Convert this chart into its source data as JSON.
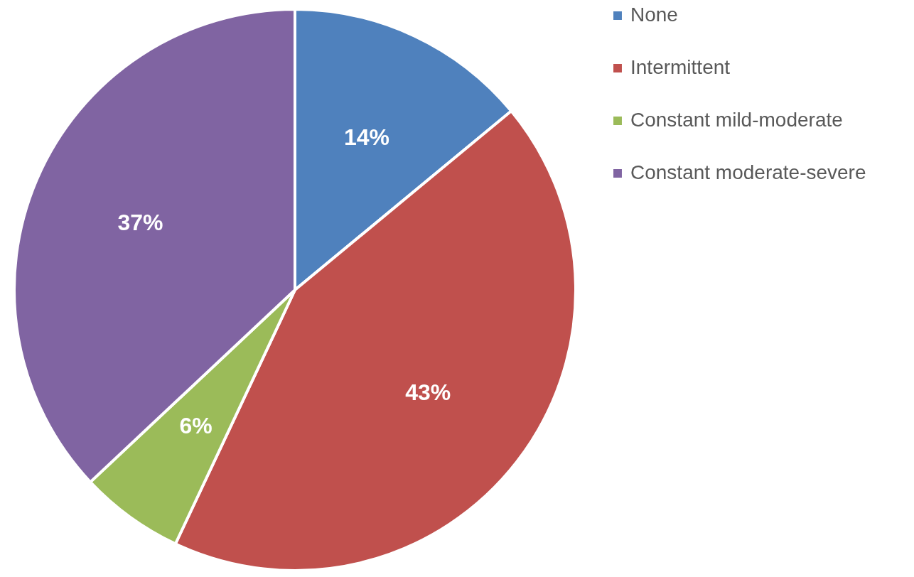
{
  "chart_data": {
    "type": "pie",
    "categories": [
      "None",
      "Intermittent",
      "Constant mild-moderate",
      "Constant moderate-severe"
    ],
    "values": [
      14,
      43,
      6,
      37
    ],
    "colors": [
      "#4f81bd",
      "#c0504d",
      "#9bbb59",
      "#8064a2"
    ],
    "value_labels": [
      "14%",
      "43%",
      "6%",
      "37%"
    ],
    "legend": "right"
  }
}
